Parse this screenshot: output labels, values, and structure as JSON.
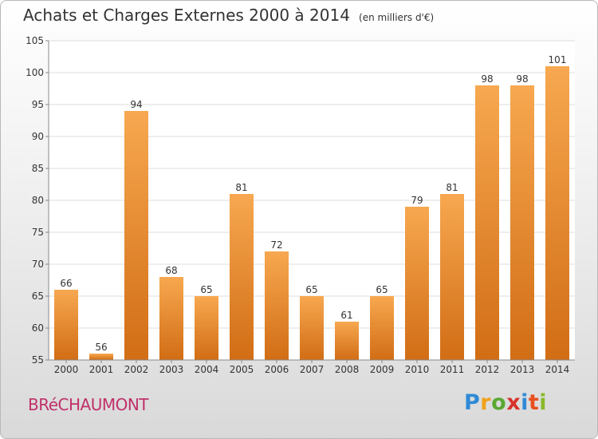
{
  "title": "Achats et Charges Externes 2000 à 2014",
  "unit": "(en milliers d'€)",
  "town": "BRéCHAUMONT",
  "logo": {
    "letters": [
      "P",
      "r",
      "o",
      "x",
      "i",
      "t",
      "i"
    ],
    "colors": [
      "#2f8ad6",
      "#f0a21a",
      "#5aa832",
      "#d8322c",
      "#2f8ad6",
      "#e8501e",
      "#8ab82a"
    ]
  },
  "colors": {
    "bar_top": "#f7a850",
    "bar_bottom": "#d16d15",
    "grid": "#dddddd",
    "text": "#333333",
    "town": "#c0306a"
  },
  "chart_data": {
    "type": "bar",
    "categories": [
      "2000",
      "2001",
      "2002",
      "2003",
      "2004",
      "2005",
      "2006",
      "2007",
      "2008",
      "2009",
      "2010",
      "2011",
      "2012",
      "2013",
      "2014"
    ],
    "values": [
      66,
      56,
      94,
      68,
      65,
      81,
      72,
      65,
      61,
      65,
      79,
      81,
      98,
      98,
      101
    ],
    "ylim": [
      55,
      105
    ],
    "yticks": [
      55,
      60,
      65,
      70,
      75,
      80,
      85,
      90,
      95,
      100,
      105
    ],
    "grid": true
  }
}
